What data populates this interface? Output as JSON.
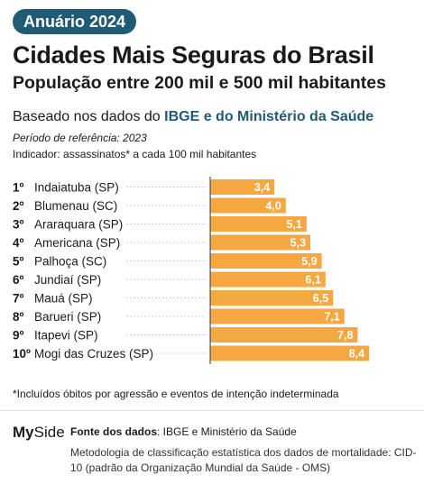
{
  "header": {
    "badge": "Anuário 2024",
    "title": "Cidades Mais Seguras do Brasil",
    "subtitle": "População entre 200 mil e 500 mil habitantes",
    "basis_prefix": "Baseado nos dados do ",
    "basis_source": "IBGE e do Ministério da Saúde",
    "period": "Período de referência: 2023",
    "indicator": "Indicador: assassinatos* a cada 100 mil habitantes"
  },
  "chart_data": {
    "type": "bar",
    "orientation": "horizontal",
    "ranks": [
      "1º",
      "2º",
      "3º",
      "4º",
      "5º",
      "6º",
      "7º",
      "8º",
      "9º",
      "10º"
    ],
    "categories": [
      "Indaiatuba (SP)",
      "Blumenau (SC)",
      "Araraquara (SP)",
      "Americana (SP)",
      "Palhoça (SC)",
      "Jundiaí (SP)",
      "Mauá (SP)",
      "Barueri (SP)",
      "Itapevi (SP)",
      "Mogi das Cruzes (SP)"
    ],
    "values": [
      3.4,
      4.0,
      5.1,
      5.3,
      5.9,
      6.1,
      6.5,
      7.1,
      7.8,
      8.4
    ],
    "labels": [
      "3,4",
      "4,0",
      "5,1",
      "5,3",
      "5,9",
      "6,1",
      "6,5",
      "7,1",
      "7,8",
      "8,4"
    ],
    "bar_color": "#f5a742",
    "label_color": "#ffffff"
  },
  "footnote": "*Incluídos óbitos por agressão e eventos de intenção indeterminada",
  "footer": {
    "logo_a": "My",
    "logo_b": "Side",
    "source_label": "Fonte dos dados",
    "source_text": ": IBGE e Ministério da Saúde",
    "methodology": "Metodologia de classificação estatística dos dados de mortalidade: CID-10 (padrão da Organização Mundial da Saúde - OMS)"
  }
}
